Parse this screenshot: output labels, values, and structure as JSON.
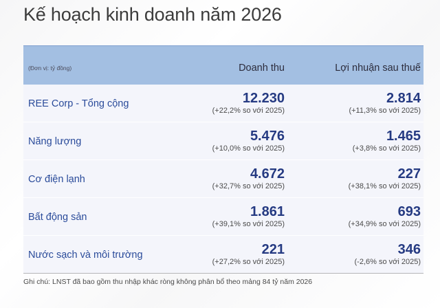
{
  "title": "Kế hoạch kinh doanh năm 2026",
  "table": {
    "unit_label": "(Đơn vị: tỷ đồng)",
    "columns": [
      "Doanh thu",
      "Lợi nhuận sau thuế"
    ],
    "rows": [
      {
        "name": "REE Corp - Tổng cộng",
        "revenue": "12.230",
        "revenue_change": "(+22,2% so với 2025)",
        "profit": "2.814",
        "profit_change": "(+11,3% so với 2025)"
      },
      {
        "name": "Năng lượng",
        "revenue": "5.476",
        "revenue_change": "(+10,0% so với 2025)",
        "profit": "1.465",
        "profit_change": "(+3,8% so với 2025)"
      },
      {
        "name": "Cơ điện lạnh",
        "revenue": "4.672",
        "revenue_change": "(+32,7% so với 2025)",
        "profit": "227",
        "profit_change": "(+38,1% so với 2025)"
      },
      {
        "name": "Bất động sản",
        "revenue": "1.861",
        "revenue_change": "(+39,1% so với 2025)",
        "profit": "693",
        "profit_change": "(+34,9% so với 2025)"
      },
      {
        "name": "Nước sạch và môi trường",
        "revenue": "221",
        "revenue_change": "(+27,2% so với 2025)",
        "profit": "346",
        "profit_change": "(-2,6% so với 2025)"
      }
    ]
  },
  "footnote": "Ghi chú: LNST đã bao gồm thu nhập khác ròng không phân bổ theo mảng 84 tỷ năm 2026",
  "colors": {
    "header_bg": "#a3bfe2",
    "row_bg": "#f4f5fb",
    "value_text": "#253a82",
    "row_label_text": "#2a4b9a"
  }
}
